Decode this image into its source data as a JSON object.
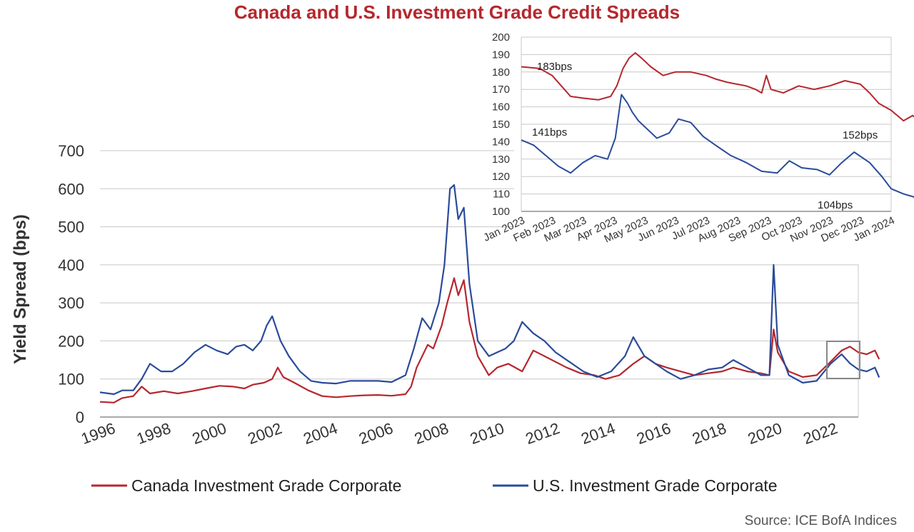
{
  "title": "Canada and U.S. Investment Grade Credit Spreads",
  "source": "Source: ICE BofA Indices",
  "colors": {
    "title": "#b5272d",
    "canada": "#b5272d",
    "us": "#2a4b9b",
    "grid": "#c8c8c8",
    "axis": "#555555",
    "box": "#888888"
  },
  "chart_data": [
    {
      "type": "line",
      "ylabel": "Yield Spread (bps)",
      "xlim": [
        1996,
        2023.3
      ],
      "ylim": [
        0,
        700
      ],
      "yticks": [
        0,
        100,
        200,
        300,
        400,
        500,
        600,
        700
      ],
      "xticks": [
        "1996",
        "1998",
        "2000",
        "2002",
        "2004",
        "2006",
        "2008",
        "2010",
        "2012",
        "2014",
        "2016",
        "2018",
        "2020",
        "2022"
      ],
      "grid": "horizontal",
      "legend": "bottom",
      "series": [
        {
          "name": "Canada Investment Grade Corporate",
          "points": [
            [
              1996.0,
              40
            ],
            [
              1996.5,
              38
            ],
            [
              1996.8,
              50
            ],
            [
              1997.2,
              55
            ],
            [
              1997.5,
              80
            ],
            [
              1997.8,
              62
            ],
            [
              1998.3,
              68
            ],
            [
              1998.8,
              62
            ],
            [
              1999.3,
              68
            ],
            [
              1999.8,
              75
            ],
            [
              2000.3,
              82
            ],
            [
              2000.8,
              80
            ],
            [
              2001.2,
              75
            ],
            [
              2001.5,
              85
            ],
            [
              2001.9,
              90
            ],
            [
              2002.2,
              100
            ],
            [
              2002.4,
              130
            ],
            [
              2002.6,
              105
            ],
            [
              2003.0,
              90
            ],
            [
              2003.5,
              70
            ],
            [
              2004.0,
              55
            ],
            [
              2004.5,
              52
            ],
            [
              2005.0,
              55
            ],
            [
              2005.5,
              57
            ],
            [
              2006.0,
              58
            ],
            [
              2006.5,
              56
            ],
            [
              2007.0,
              60
            ],
            [
              2007.2,
              80
            ],
            [
              2007.4,
              130
            ],
            [
              2007.6,
              160
            ],
            [
              2007.8,
              190
            ],
            [
              2008.0,
              180
            ],
            [
              2008.3,
              240
            ],
            [
              2008.5,
              300
            ],
            [
              2008.75,
              365
            ],
            [
              2008.9,
              320
            ],
            [
              2009.1,
              360
            ],
            [
              2009.3,
              250
            ],
            [
              2009.6,
              160
            ],
            [
              2010.0,
              110
            ],
            [
              2010.3,
              130
            ],
            [
              2010.7,
              140
            ],
            [
              2011.2,
              120
            ],
            [
              2011.6,
              175
            ],
            [
              2012.0,
              160
            ],
            [
              2012.4,
              145
            ],
            [
              2012.8,
              130
            ],
            [
              2013.3,
              115
            ],
            [
              2013.8,
              110
            ],
            [
              2014.2,
              100
            ],
            [
              2014.7,
              110
            ],
            [
              2015.2,
              140
            ],
            [
              2015.6,
              160
            ],
            [
              2016.0,
              140
            ],
            [
              2016.4,
              130
            ],
            [
              2016.9,
              120
            ],
            [
              2017.4,
              110
            ],
            [
              2017.9,
              115
            ],
            [
              2018.4,
              120
            ],
            [
              2018.8,
              130
            ],
            [
              2019.3,
              120
            ],
            [
              2019.8,
              115
            ],
            [
              2020.1,
              110
            ],
            [
              2020.25,
              230
            ],
            [
              2020.4,
              170
            ],
            [
              2020.8,
              120
            ],
            [
              2021.3,
              105
            ],
            [
              2021.8,
              110
            ],
            [
              2022.3,
              145
            ],
            [
              2022.7,
              175
            ],
            [
              2023.0,
              185
            ],
            [
              2023.3,
              170
            ],
            [
              2023.6,
              165
            ],
            [
              2023.9,
              175
            ],
            [
              2024.05,
              152
            ]
          ]
        },
        {
          "name": "U.S. Investment Grade Corporate",
          "points": [
            [
              1996.0,
              65
            ],
            [
              1996.5,
              60
            ],
            [
              1996.8,
              70
            ],
            [
              1997.2,
              70
            ],
            [
              1997.5,
              100
            ],
            [
              1997.8,
              140
            ],
            [
              1998.2,
              120
            ],
            [
              1998.6,
              120
            ],
            [
              1999.0,
              140
            ],
            [
              1999.4,
              170
            ],
            [
              1999.8,
              190
            ],
            [
              2000.2,
              175
            ],
            [
              2000.6,
              165
            ],
            [
              2000.9,
              185
            ],
            [
              2001.2,
              190
            ],
            [
              2001.5,
              175
            ],
            [
              2001.8,
              200
            ],
            [
              2002.0,
              240
            ],
            [
              2002.2,
              265
            ],
            [
              2002.5,
              200
            ],
            [
              2002.8,
              160
            ],
            [
              2003.2,
              120
            ],
            [
              2003.6,
              95
            ],
            [
              2004.0,
              90
            ],
            [
              2004.5,
              88
            ],
            [
              2005.0,
              95
            ],
            [
              2005.5,
              95
            ],
            [
              2006.0,
              95
            ],
            [
              2006.5,
              92
            ],
            [
              2007.0,
              110
            ],
            [
              2007.3,
              180
            ],
            [
              2007.6,
              260
            ],
            [
              2007.9,
              230
            ],
            [
              2008.2,
              300
            ],
            [
              2008.4,
              400
            ],
            [
              2008.6,
              600
            ],
            [
              2008.75,
              610
            ],
            [
              2008.9,
              520
            ],
            [
              2009.1,
              550
            ],
            [
              2009.3,
              350
            ],
            [
              2009.6,
              200
            ],
            [
              2010.0,
              160
            ],
            [
              2010.3,
              170
            ],
            [
              2010.6,
              180
            ],
            [
              2010.9,
              200
            ],
            [
              2011.2,
              250
            ],
            [
              2011.6,
              220
            ],
            [
              2012.0,
              200
            ],
            [
              2012.4,
              170
            ],
            [
              2012.9,
              145
            ],
            [
              2013.4,
              120
            ],
            [
              2013.9,
              105
            ],
            [
              2014.4,
              120
            ],
            [
              2014.9,
              160
            ],
            [
              2015.2,
              210
            ],
            [
              2015.6,
              160
            ],
            [
              2016.0,
              140
            ],
            [
              2016.4,
              120
            ],
            [
              2016.9,
              100
            ],
            [
              2017.4,
              110
            ],
            [
              2017.9,
              125
            ],
            [
              2018.4,
              130
            ],
            [
              2018.8,
              150
            ],
            [
              2019.3,
              130
            ],
            [
              2019.8,
              110
            ],
            [
              2020.1,
              110
            ],
            [
              2020.25,
              400
            ],
            [
              2020.4,
              190
            ],
            [
              2020.8,
              110
            ],
            [
              2021.3,
              90
            ],
            [
              2021.8,
              95
            ],
            [
              2022.3,
              140
            ],
            [
              2022.7,
              165
            ],
            [
              2023.0,
              141
            ],
            [
              2023.3,
              125
            ],
            [
              2023.6,
              120
            ],
            [
              2023.9,
              130
            ],
            [
              2024.05,
              104
            ]
          ]
        }
      ]
    },
    {
      "type": "line",
      "title": "",
      "ylim": [
        100,
        200
      ],
      "yticks": [
        100,
        110,
        120,
        130,
        140,
        150,
        160,
        170,
        180,
        190,
        200
      ],
      "xticks": [
        "Jan 2023",
        "Feb 2023",
        "Mar 2023",
        "Apr 2023",
        "May 2023",
        "Jun 2023",
        "Jul 2023",
        "Aug 2023",
        "Sep 2023",
        "Oct 2023",
        "Nov 2023",
        "Dec 2023",
        "Jan 2024"
      ],
      "grid": "horizontal",
      "annotations": [
        "183bps",
        "141bps",
        "152bps",
        "104bps"
      ],
      "series": [
        {
          "name": "Canada Investment Grade Corporate",
          "points": [
            [
              0.0,
              183
            ],
            [
              0.6,
              182
            ],
            [
              1.0,
              178
            ],
            [
              1.3,
              172
            ],
            [
              1.6,
              166
            ],
            [
              2.0,
              165
            ],
            [
              2.5,
              164
            ],
            [
              2.9,
              166
            ],
            [
              3.1,
              172
            ],
            [
              3.3,
              182
            ],
            [
              3.5,
              188
            ],
            [
              3.7,
              191
            ],
            [
              3.9,
              188
            ],
            [
              4.2,
              183
            ],
            [
              4.6,
              178
            ],
            [
              5.0,
              180
            ],
            [
              5.5,
              180
            ],
            [
              6.0,
              178
            ],
            [
              6.3,
              176
            ],
            [
              6.7,
              174
            ],
            [
              7.0,
              173
            ],
            [
              7.3,
              172
            ],
            [
              7.6,
              170
            ],
            [
              7.8,
              168
            ],
            [
              7.95,
              178
            ],
            [
              8.1,
              170
            ],
            [
              8.5,
              168
            ],
            [
              9.0,
              172
            ],
            [
              9.5,
              170
            ],
            [
              10.0,
              172
            ],
            [
              10.5,
              175
            ],
            [
              11.0,
              173
            ],
            [
              11.3,
              168
            ],
            [
              11.6,
              162
            ],
            [
              12.0,
              158
            ],
            [
              12.4,
              152
            ],
            [
              12.7,
              155
            ],
            [
              12.9,
              152
            ]
          ]
        },
        {
          "name": "U.S. Investment Grade Corporate",
          "points": [
            [
              0.0,
              141
            ],
            [
              0.4,
              138
            ],
            [
              0.8,
              132
            ],
            [
              1.2,
              126
            ],
            [
              1.6,
              122
            ],
            [
              2.0,
              128
            ],
            [
              2.4,
              132
            ],
            [
              2.8,
              130
            ],
            [
              3.05,
              142
            ],
            [
              3.25,
              167
            ],
            [
              3.45,
              162
            ],
            [
              3.6,
              157
            ],
            [
              3.8,
              152
            ],
            [
              4.1,
              147
            ],
            [
              4.4,
              142
            ],
            [
              4.8,
              145
            ],
            [
              5.1,
              153
            ],
            [
              5.5,
              151
            ],
            [
              5.9,
              143
            ],
            [
              6.3,
              138
            ],
            [
              6.8,
              132
            ],
            [
              7.3,
              128
            ],
            [
              7.8,
              123
            ],
            [
              8.3,
              122
            ],
            [
              8.7,
              129
            ],
            [
              9.1,
              125
            ],
            [
              9.6,
              124
            ],
            [
              10.0,
              121
            ],
            [
              10.4,
              128
            ],
            [
              10.8,
              134
            ],
            [
              11.3,
              128
            ],
            [
              11.7,
              120
            ],
            [
              12.0,
              113
            ],
            [
              12.4,
              110
            ],
            [
              12.8,
              108
            ],
            [
              13.0,
              104
            ]
          ]
        }
      ]
    }
  ],
  "legend": {
    "canada": "Canada Investment Grade Corporate",
    "us": "U.S. Investment Grade Corporate"
  }
}
